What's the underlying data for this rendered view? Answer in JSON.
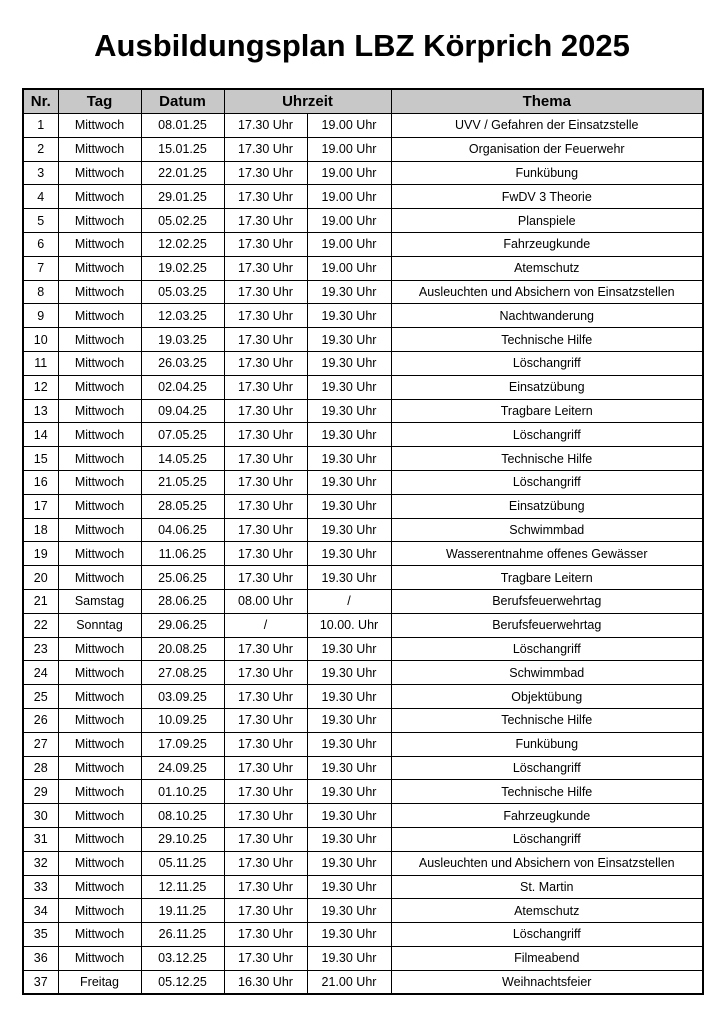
{
  "title": "Ausbildungsplan LBZ Körprich 2025",
  "header": {
    "nr": "Nr.",
    "tag": "Tag",
    "datum": "Datum",
    "uhrzeit": "Uhrzeit",
    "thema": "Thema"
  },
  "header_color": "#c8c8c8",
  "rows": [
    [
      "1",
      "Mittwoch",
      "08.01.25",
      "17.30 Uhr",
      "19.00 Uhr",
      "UVV / Gefahren der Einsatzstelle"
    ],
    [
      "2",
      "Mittwoch",
      "15.01.25",
      "17.30 Uhr",
      "19.00 Uhr",
      "Organisation der Feuerwehr"
    ],
    [
      "3",
      "Mittwoch",
      "22.01.25",
      "17.30 Uhr",
      "19.00 Uhr",
      "Funkübung"
    ],
    [
      "4",
      "Mittwoch",
      "29.01.25",
      "17.30 Uhr",
      "19.00 Uhr",
      "FwDV 3 Theorie"
    ],
    [
      "5",
      "Mittwoch",
      "05.02.25",
      "17.30 Uhr",
      "19.00 Uhr",
      "Planspiele"
    ],
    [
      "6",
      "Mittwoch",
      "12.02.25",
      "17.30 Uhr",
      "19.00 Uhr",
      "Fahrzeugkunde"
    ],
    [
      "7",
      "Mittwoch",
      "19.02.25",
      "17.30 Uhr",
      "19.00 Uhr",
      "Atemschutz"
    ],
    [
      "8",
      "Mittwoch",
      "05.03.25",
      "17.30 Uhr",
      "19.30 Uhr",
      "Ausleuchten und Absichern von Einsatzstellen"
    ],
    [
      "9",
      "Mittwoch",
      "12.03.25",
      "17.30 Uhr",
      "19.30 Uhr",
      "Nachtwanderung"
    ],
    [
      "10",
      "Mittwoch",
      "19.03.25",
      "17.30 Uhr",
      "19.30 Uhr",
      "Technische Hilfe"
    ],
    [
      "11",
      "Mittwoch",
      "26.03.25",
      "17.30 Uhr",
      "19.30 Uhr",
      "Löschangriff"
    ],
    [
      "12",
      "Mittwoch",
      "02.04.25",
      "17.30 Uhr",
      "19.30 Uhr",
      "Einsatzübung"
    ],
    [
      "13",
      "Mittwoch",
      "09.04.25",
      "17.30 Uhr",
      "19.30 Uhr",
      "Tragbare Leitern"
    ],
    [
      "14",
      "Mittwoch",
      "07.05.25",
      "17.30 Uhr",
      "19.30 Uhr",
      "Löschangriff"
    ],
    [
      "15",
      "Mittwoch",
      "14.05.25",
      "17.30 Uhr",
      "19.30 Uhr",
      "Technische Hilfe"
    ],
    [
      "16",
      "Mittwoch",
      "21.05.25",
      "17.30 Uhr",
      "19.30 Uhr",
      "Löschangriff"
    ],
    [
      "17",
      "Mittwoch",
      "28.05.25",
      "17.30 Uhr",
      "19.30 Uhr",
      "Einsatzübung"
    ],
    [
      "18",
      "Mittwoch",
      "04.06.25",
      "17.30 Uhr",
      "19.30 Uhr",
      "Schwimmbad"
    ],
    [
      "19",
      "Mittwoch",
      "11.06.25",
      "17.30 Uhr",
      "19.30 Uhr",
      "Wasserentnahme offenes Gewässer"
    ],
    [
      "20",
      "Mittwoch",
      "25.06.25",
      "17.30 Uhr",
      "19.30 Uhr",
      "Tragbare Leitern"
    ],
    [
      "21",
      "Samstag",
      "28.06.25",
      "08.00 Uhr",
      "/",
      "Berufsfeuerwehrtag"
    ],
    [
      "22",
      "Sonntag",
      "29.06.25",
      "/",
      "10.00. Uhr",
      "Berufsfeuerwehrtag"
    ],
    [
      "23",
      "Mittwoch",
      "20.08.25",
      "17.30 Uhr",
      "19.30 Uhr",
      "Löschangriff"
    ],
    [
      "24",
      "Mittwoch",
      "27.08.25",
      "17.30 Uhr",
      "19.30 Uhr",
      "Schwimmbad"
    ],
    [
      "25",
      "Mittwoch",
      "03.09.25",
      "17.30 Uhr",
      "19.30 Uhr",
      "Objektübung"
    ],
    [
      "26",
      "Mittwoch",
      "10.09.25",
      "17.30 Uhr",
      "19.30 Uhr",
      "Technische Hilfe"
    ],
    [
      "27",
      "Mittwoch",
      "17.09.25",
      "17.30 Uhr",
      "19.30 Uhr",
      "Funkübung"
    ],
    [
      "28",
      "Mittwoch",
      "24.09.25",
      "17.30 Uhr",
      "19.30 Uhr",
      "Löschangriff"
    ],
    [
      "29",
      "Mittwoch",
      "01.10.25",
      "17.30 Uhr",
      "19.30 Uhr",
      "Technische Hilfe"
    ],
    [
      "30",
      "Mittwoch",
      "08.10.25",
      "17.30 Uhr",
      "19.30 Uhr",
      "Fahrzeugkunde"
    ],
    [
      "31",
      "Mittwoch",
      "29.10.25",
      "17.30 Uhr",
      "19.30 Uhr",
      "Löschangriff"
    ],
    [
      "32",
      "Mittwoch",
      "05.11.25",
      "17.30 Uhr",
      "19.30 Uhr",
      "Ausleuchten und Absichern von Einsatzstellen"
    ],
    [
      "33",
      "Mittwoch",
      "12.11.25",
      "17.30 Uhr",
      "19.30 Uhr",
      "St. Martin"
    ],
    [
      "34",
      "Mittwoch",
      "19.11.25",
      "17.30 Uhr",
      "19.30 Uhr",
      "Atemschutz"
    ],
    [
      "35",
      "Mittwoch",
      "26.11.25",
      "17.30 Uhr",
      "19.30 Uhr",
      "Löschangriff"
    ],
    [
      "36",
      "Mittwoch",
      "03.12.25",
      "17.30 Uhr",
      "19.30 Uhr",
      "Filmeabend"
    ],
    [
      "37",
      "Freitag",
      "05.12.25",
      "16.30 Uhr",
      "21.00 Uhr",
      "Weihnachtsfeier"
    ]
  ]
}
